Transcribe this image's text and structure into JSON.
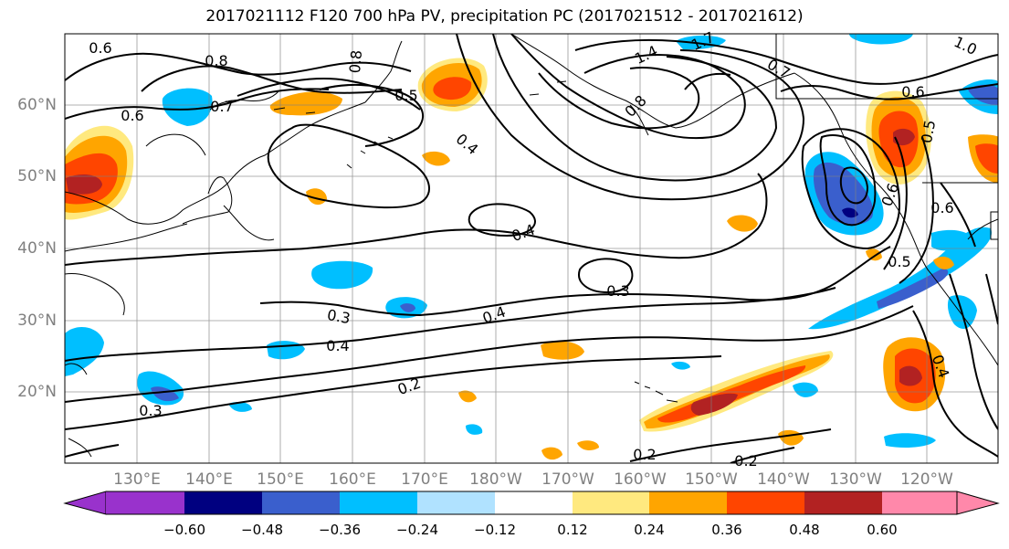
{
  "title": "2017021112 F120 700 hPa PV, precipitation PC (2017021512 - 2017021612)",
  "lat_labels": [
    "60°N",
    "50°N",
    "40°N",
    "30°N",
    "20°N"
  ],
  "lon_labels": [
    "130°E",
    "140°E",
    "150°E",
    "160°E",
    "170°E",
    "180°W",
    "170°W",
    "160°W",
    "150°W",
    "140°W",
    "130°W",
    "120°W"
  ],
  "contour_labels": [
    "0.6",
    "0.8",
    "0.7",
    "0.6",
    "0.8",
    "0.5",
    "1.4",
    "1.7",
    "0.7",
    "1.0",
    "0.6",
    "0.4",
    "0.8",
    "0.4",
    "0.6",
    "0.5",
    "0.3",
    "0.3",
    "0.4",
    "0.4",
    "0.6",
    "0.5",
    "0.3",
    "0.2",
    "0.4",
    "0.2",
    "0.2"
  ],
  "colorbar": {
    "ticks": [
      "−0.60",
      "−0.48",
      "−0.36",
      "−0.24",
      "−0.12",
      "0.12",
      "0.24",
      "0.36",
      "0.48",
      "0.60"
    ],
    "colors": [
      "#9932cc",
      "#000080",
      "#3a5fcd",
      "#00bfff",
      "#b0e2ff",
      "#ffffff",
      "#ffe97f",
      "#ffa500",
      "#ff4500",
      "#b22222",
      "#ff88aa"
    ]
  },
  "palette": {
    "pc_neg_weak": "#b0e2ff",
    "pc_neg_mid": "#00bfff",
    "pc_neg_strong": "#3a5fcd",
    "pc_pos_weak": "#ffe97f",
    "pc_pos_mid": "#ffa500",
    "pc_pos_strong": "#ff4500",
    "pc_pos_max": "#b22222",
    "contour": "#000000",
    "grid": "#808080",
    "coast": "#000000"
  }
}
